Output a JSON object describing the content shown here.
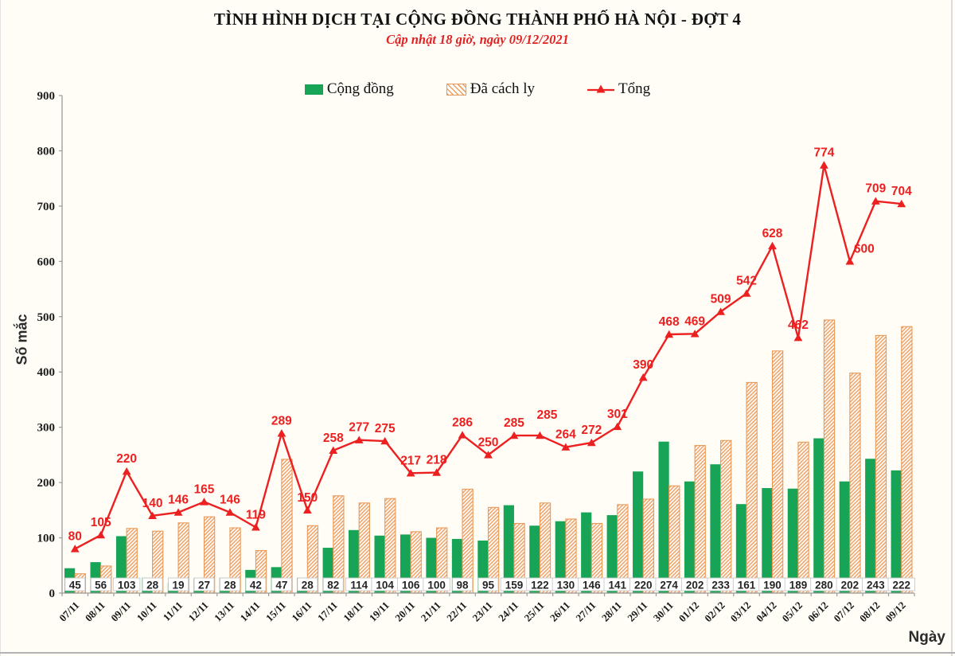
{
  "chart_data": {
    "type": "combo-bar-line",
    "title": "TÌNH HÌNH DỊCH TẠI CỘNG ĐỒNG THÀNH PHỐ HÀ NỘI - ĐỢT 4",
    "subtitle": "Cập nhật 18 giờ, ngày 09/12/2021",
    "xlabel": "Ngày",
    "ylabel": "Số mắc",
    "ylim": [
      0,
      900
    ],
    "ytick_step": 100,
    "grid": false,
    "legend_position": "top-center",
    "x": [
      "07/11",
      "08/11",
      "09/11",
      "10/11",
      "11/11",
      "12/11",
      "13/11",
      "14/11",
      "15/11",
      "16/11",
      "17/11",
      "18/11",
      "19/11",
      "20/11",
      "21/11",
      "22/11",
      "23/11",
      "24/11",
      "25/11",
      "26/11",
      "27/11",
      "28/11",
      "29/11",
      "30/11",
      "01/12",
      "02/12",
      "03/12",
      "04/12",
      "05/12",
      "06/12",
      "07/12",
      "08/12",
      "09/12"
    ],
    "series": [
      {
        "name": "Cộng đồng",
        "type": "bar",
        "style": "solid",
        "color": "#17a456",
        "data_labels": "boxed-at-base",
        "values": [
          45,
          56,
          103,
          28,
          19,
          27,
          28,
          42,
          47,
          28,
          82,
          114,
          104,
          106,
          100,
          98,
          95,
          159,
          122,
          130,
          146,
          141,
          220,
          274,
          202,
          233,
          161,
          190,
          189,
          280,
          202,
          243,
          222
        ]
      },
      {
        "name": "Đã cách ly",
        "type": "bar",
        "style": "diagonal-hatch",
        "color": "#f0a061",
        "border_color": "#e99a58",
        "values": [
          35,
          49,
          117,
          112,
          127,
          138,
          118,
          77,
          242,
          122,
          176,
          163,
          171,
          111,
          118,
          188,
          155,
          126,
          163,
          134,
          126,
          160,
          170,
          194,
          267,
          276,
          381,
          438,
          273,
          494,
          398,
          466,
          482
        ]
      },
      {
        "name": "Tổng",
        "type": "line",
        "marker": "triangle",
        "color": "#ec2020",
        "data_labels": "above-points",
        "values": [
          80,
          105,
          220,
          140,
          146,
          165,
          146,
          119,
          289,
          150,
          258,
          277,
          275,
          217,
          218,
          286,
          250,
          285,
          285,
          264,
          272,
          301,
          390,
          468,
          469,
          509,
          542,
          628,
          462,
          774,
          600,
          709,
          704
        ]
      }
    ],
    "axis_color": "#9b9b9b"
  }
}
